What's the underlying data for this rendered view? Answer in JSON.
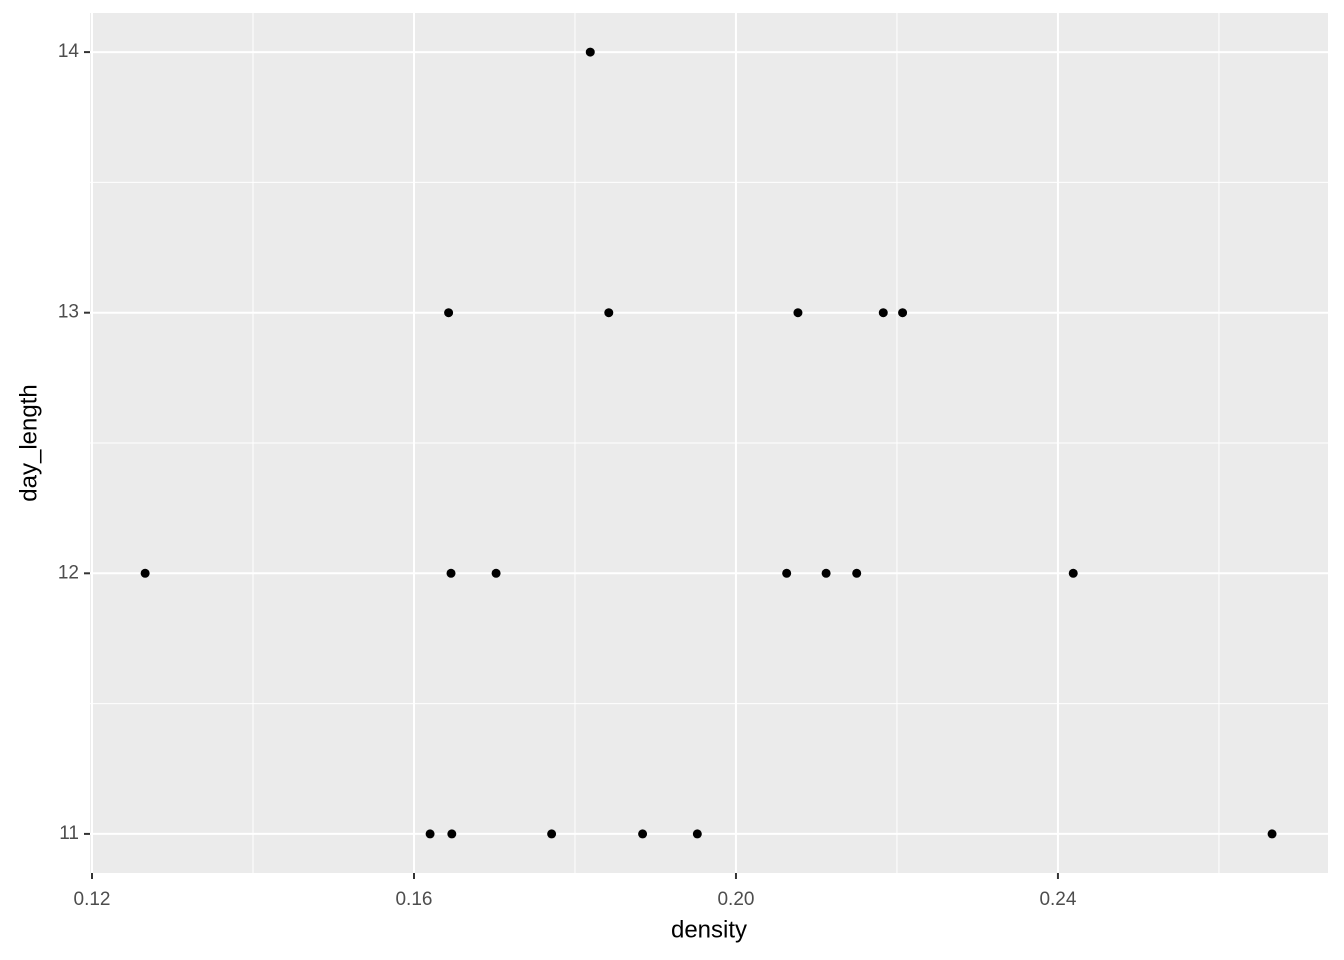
{
  "chart_data": {
    "type": "scatter",
    "x_label": "density",
    "y_label": "day_length",
    "xlim": [
      0.11975,
      0.27355
    ],
    "ylim": [
      10.85,
      14.15
    ],
    "xticks": [
      {
        "value": 0.12,
        "label": "0.12"
      },
      {
        "value": 0.16,
        "label": "0.16"
      },
      {
        "value": 0.2,
        "label": "0.20"
      },
      {
        "value": 0.24,
        "label": "0.24"
      }
    ],
    "yticks": [
      11,
      12,
      13,
      14
    ],
    "xminorticks": [
      0.14,
      0.18,
      0.22,
      0.26
    ],
    "yminorticks": [
      11.5,
      12.5,
      13.5
    ],
    "grid": true,
    "panel_color": "#ebebeb",
    "grid_color": "#ffffff",
    "series": [
      {
        "color": "#000000",
        "x": [
          0.1819,
          0.1643,
          0.1842,
          0.2077,
          0.2183,
          0.2207,
          0.1266,
          0.1646,
          0.1702,
          0.2063,
          0.2112,
          0.215,
          0.2419,
          0.162,
          0.1647,
          0.1771,
          0.1884,
          0.1952,
          0.2666
        ],
        "values": [
          14,
          13,
          13,
          13,
          13,
          13,
          12,
          12,
          12,
          12,
          12,
          12,
          12,
          11,
          11,
          11,
          11,
          11,
          11
        ]
      }
    ]
  }
}
